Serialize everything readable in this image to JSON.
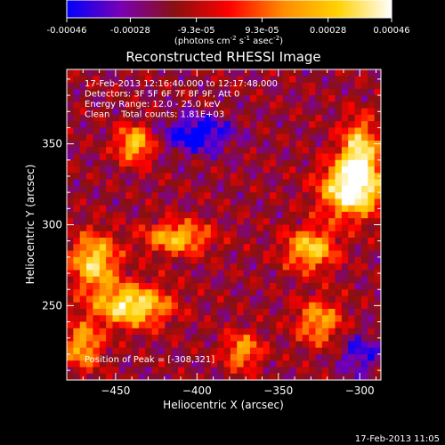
{
  "colors": {
    "background": "#000000",
    "foreground": "#ffffff",
    "colormap": [
      "#0000ff",
      "#7a00b4",
      "#8a1010",
      "#ff0000",
      "#ff8c00",
      "#ffd200",
      "#ffffff"
    ]
  },
  "chart_data": {
    "type": "heatmap",
    "title": "Reconstructed RHESSI Image",
    "xlabel": "Heliocentric X (arcsec)",
    "ylabel": "Heliocentric Y (arcsec)",
    "xlim": [
      -480,
      -287
    ],
    "ylim": [
      204,
      396
    ],
    "xticks": [
      -450,
      -400,
      -350,
      -300
    ],
    "yticks": [
      250,
      300,
      350
    ],
    "colorbar": {
      "range": [
        -0.00046,
        0.00046
      ],
      "ticks": [
        -0.00046,
        -0.00028,
        -9.3e-05,
        9.3e-05,
        0.00028,
        0.00046
      ],
      "tick_labels": [
        "-0.00046",
        "-0.00028",
        "-9.3e-05",
        "9.3e-05",
        "0.00028",
        "0.00046"
      ],
      "units_main": "(photons cm",
      "units_exp1": "-2",
      "units_mid": " s",
      "units_exp2": "-1",
      "units_tail": " asec",
      "units_exp3": "-2",
      "units_close": ")"
    },
    "info_lines": [
      "17-Feb-2013 12:16:40.000 to 12:17:48.000",
      "Detectors: 3F 5F 6F 7F 8F 9F, Att 0",
      "Energy Range: 12.0 - 25.0 keV",
      "Clean    Total counts: 1.81E+03"
    ],
    "peak_label": "Position of Peak = [-308,321]",
    "peak": {
      "x": -308,
      "y": 321
    },
    "grid_cells": [
      48,
      48
    ],
    "features": [
      {
        "x": -305,
        "y": 322,
        "amp": 1.0,
        "sx": 13,
        "sy": 12
      },
      {
        "x": -330,
        "y": 285,
        "amp": 0.7,
        "sx": 11,
        "sy": 9
      },
      {
        "x": -300,
        "y": 345,
        "amp": 0.75,
        "sx": 8,
        "sy": 14
      },
      {
        "x": -440,
        "y": 250,
        "amp": 0.85,
        "sx": 16,
        "sy": 9
      },
      {
        "x": -463,
        "y": 277,
        "amp": 0.75,
        "sx": 10,
        "sy": 12
      },
      {
        "x": -412,
        "y": 292,
        "amp": 0.65,
        "sx": 14,
        "sy": 7
      },
      {
        "x": -438,
        "y": 350,
        "amp": 0.7,
        "sx": 8,
        "sy": 8
      },
      {
        "x": -372,
        "y": 222,
        "amp": 0.55,
        "sx": 8,
        "sy": 8
      },
      {
        "x": -325,
        "y": 240,
        "amp": 0.55,
        "sx": 10,
        "sy": 10
      },
      {
        "x": -470,
        "y": 225,
        "amp": 0.6,
        "sx": 8,
        "sy": 10
      },
      {
        "x": -400,
        "y": 356,
        "amp": -0.5,
        "sx": 15,
        "sy": 8
      },
      {
        "x": -300,
        "y": 220,
        "amp": -0.35,
        "sx": 9,
        "sy": 9
      }
    ]
  },
  "footer": {
    "timestamp": "17-Feb-2013 11:05"
  }
}
